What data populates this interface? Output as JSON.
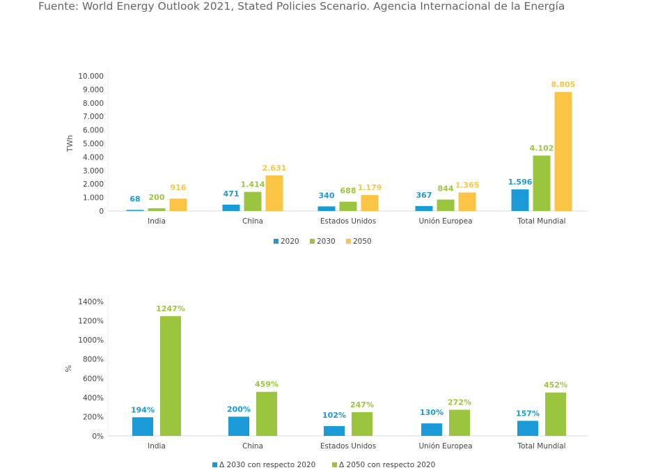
{
  "source": "Fuente: World Energy Outlook 2021, Stated Policies Scenario. Agencia Internacional de la Energía",
  "chart_data": [
    {
      "type": "bar",
      "ylabel": "TWh",
      "ylim": [
        0,
        10000
      ],
      "yticks": [
        "10.000",
        "9.000",
        "8.000",
        "7.000",
        "6.000",
        "5.000",
        "4.000",
        "3.000",
        "2.000",
        "1.000",
        "0"
      ],
      "categories": [
        "India",
        "China",
        "Estados Unidos",
        "Unión Europea",
        "Total Mundial"
      ],
      "legend": "bottom",
      "series": [
        {
          "name": "2020",
          "color": "#1a9ad6",
          "values": [
            68,
            471,
            340,
            367,
            1596
          ],
          "labels": [
            "68",
            "471",
            "340",
            "367",
            "1.596"
          ]
        },
        {
          "name": "2030",
          "color": "#9cc53f",
          "values": [
            200,
            1414,
            688,
            844,
            4102
          ],
          "labels": [
            "200",
            "1.414",
            "688",
            "844",
            "4.102"
          ]
        },
        {
          "name": "2050",
          "color": "#fcc444",
          "values": [
            916,
            2631,
            1179,
            1365,
            8805
          ],
          "labels": [
            "916",
            "2.631",
            "1.179",
            "1.365",
            "8.805"
          ]
        }
      ]
    },
    {
      "type": "bar",
      "ylabel": "%",
      "ylim": [
        0,
        1400
      ],
      "yticks": [
        "1400%",
        "1200%",
        "1000%",
        "800%",
        "600%",
        "400%",
        "200%",
        "0%"
      ],
      "categories": [
        "India",
        "China",
        "Estados Unidos",
        "Unión Europea",
        "Total Mundial"
      ],
      "legend": "bottom",
      "series": [
        {
          "name": "Δ 2030 con respecto 2020",
          "color": "#1a9ad6",
          "values": [
            194,
            200,
            102,
            130,
            157
          ],
          "labels": [
            "194%",
            "200%",
            "102%",
            "130%",
            "157%"
          ]
        },
        {
          "name": "Δ 2050 con respecto 2020",
          "color": "#9cc53f",
          "values": [
            1247,
            459,
            247,
            272,
            452
          ],
          "labels": [
            "1247%",
            "459%",
            "247%",
            "272%",
            "452%"
          ]
        }
      ]
    }
  ]
}
